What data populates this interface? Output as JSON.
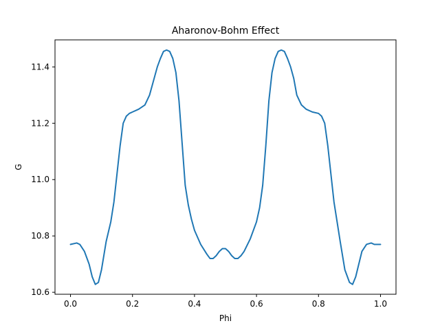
{
  "chart_data": {
    "type": "line",
    "title": "Aharonov-Bohm Effect",
    "xlabel": "Phi",
    "ylabel": "G",
    "xlim": [
      -0.05,
      1.05
    ],
    "ylim": [
      10.593,
      11.496
    ],
    "xticks": [
      0.0,
      0.2,
      0.4,
      0.6,
      0.8,
      1.0
    ],
    "xtick_labels": [
      "0.0",
      "0.2",
      "0.4",
      "0.6",
      "0.8",
      "1.0"
    ],
    "yticks": [
      10.6,
      10.8,
      11.0,
      11.2,
      11.4
    ],
    "ytick_labels": [
      "10.6",
      "10.8",
      "11.0",
      "11.2",
      "11.4"
    ],
    "grid": false,
    "series": [
      {
        "color": "#1f77b4",
        "x": [
          0.0,
          0.02,
          0.03,
          0.045,
          0.06,
          0.07,
          0.08,
          0.09,
          0.1,
          0.115,
          0.13,
          0.14,
          0.15,
          0.16,
          0.17,
          0.18,
          0.19,
          0.2,
          0.22,
          0.24,
          0.255,
          0.27,
          0.28,
          0.29,
          0.3,
          0.31,
          0.32,
          0.33,
          0.34,
          0.35,
          0.36,
          0.37,
          0.38,
          0.39,
          0.4,
          0.42,
          0.44,
          0.45,
          0.46,
          0.47,
          0.48,
          0.49,
          0.5,
          0.51,
          0.52,
          0.53,
          0.54,
          0.55,
          0.56,
          0.58,
          0.6,
          0.61,
          0.62,
          0.63,
          0.64,
          0.65,
          0.66,
          0.67,
          0.68,
          0.69,
          0.7,
          0.71,
          0.72,
          0.73,
          0.745,
          0.76,
          0.78,
          0.8,
          0.81,
          0.82,
          0.83,
          0.84,
          0.85,
          0.86,
          0.87,
          0.885,
          0.9,
          0.91,
          0.92,
          0.93,
          0.94,
          0.955,
          0.97,
          0.98,
          1.0
        ],
        "y": [
          10.77,
          10.775,
          10.77,
          10.745,
          10.7,
          10.655,
          10.628,
          10.635,
          10.68,
          10.78,
          10.85,
          10.92,
          11.02,
          11.12,
          11.2,
          11.225,
          11.235,
          11.24,
          11.25,
          11.265,
          11.3,
          11.36,
          11.4,
          11.43,
          11.455,
          11.46,
          11.455,
          11.43,
          11.38,
          11.28,
          11.13,
          10.98,
          10.91,
          10.86,
          10.82,
          10.77,
          10.735,
          10.72,
          10.72,
          10.73,
          10.745,
          10.755,
          10.755,
          10.745,
          10.73,
          10.72,
          10.72,
          10.73,
          10.745,
          10.79,
          10.85,
          10.9,
          10.98,
          11.12,
          11.28,
          11.38,
          11.43,
          11.455,
          11.46,
          11.455,
          11.43,
          11.4,
          11.36,
          11.3,
          11.265,
          11.25,
          11.24,
          11.235,
          11.225,
          11.2,
          11.12,
          11.02,
          10.92,
          10.85,
          10.78,
          10.68,
          10.635,
          10.628,
          10.655,
          10.7,
          10.745,
          10.77,
          10.775,
          10.77,
          10.77
        ]
      }
    ]
  }
}
